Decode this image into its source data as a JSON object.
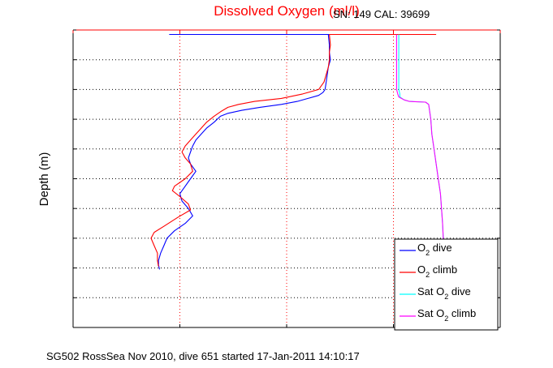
{
  "chart_data": {
    "type": "line",
    "title": "Dissolved Oxygen (ml/l)",
    "sn_label": "SN: 149  CAL: 39699",
    "ylabel": "Depth (m)",
    "caption": "SG502 RossSea Nov 2010, dive 651 started 17-Jan-2011 14:10:17",
    "xlim": [
      5,
      9
    ],
    "ylim": [
      0,
      200
    ],
    "y_reversed": true,
    "x_axis_position": "top",
    "xticks": [
      5,
      6,
      7,
      8,
      9
    ],
    "yticks": [
      0,
      20,
      40,
      60,
      80,
      100,
      120,
      140,
      160,
      180,
      200
    ],
    "grid": true,
    "legend_position": "bottom-right",
    "colors": {
      "o2_dive": "#0000ff",
      "o2_climb": "#ff0000",
      "sat_dive": "#00ffff",
      "sat_climb": "#ff00ff",
      "x_axis": "#ff0000",
      "title": "#ff0000"
    },
    "surface_line_x": [
      5.9,
      8.4
    ],
    "series": [
      {
        "key": "o2_dive",
        "name": "O2 dive",
        "legend_main": "O",
        "legend_sub": "2",
        "legend_rest": " dive",
        "x": [
          7.39,
          7.4,
          7.4,
          7.41,
          7.39,
          7.38,
          7.37,
          7.36,
          7.34,
          7.3,
          7.2,
          7.1,
          6.95,
          6.75,
          6.58,
          6.45,
          6.38,
          6.32,
          6.25,
          6.2,
          6.15,
          6.12,
          6.1,
          6.08,
          6.1,
          6.15,
          6.1,
          6.05,
          6.0,
          6.02,
          6.08,
          6.12,
          6.05,
          5.95,
          5.88,
          5.85,
          5.82,
          5.8,
          5.8,
          5.81
        ],
        "y": [
          3,
          10,
          15,
          20,
          25,
          30,
          35,
          40,
          42,
          44,
          46,
          48,
          50,
          52,
          54,
          56,
          58,
          62,
          66,
          70,
          74,
          78,
          82,
          86,
          90,
          95,
          100,
          105,
          110,
          115,
          120,
          125,
          130,
          135,
          140,
          145,
          150,
          155,
          158,
          161
        ]
      },
      {
        "key": "o2_climb",
        "name": "O2 climb",
        "legend_main": "O",
        "legend_sub": "2",
        "legend_rest": " climb",
        "x": [
          7.4,
          7.41,
          7.4,
          7.4,
          7.39,
          7.37,
          7.35,
          7.3,
          7.15,
          6.95,
          6.7,
          6.55,
          6.45,
          6.38,
          6.32,
          6.25,
          6.2,
          6.15,
          6.1,
          6.05,
          6.02,
          6.05,
          6.1,
          6.12,
          6.05,
          5.95,
          5.93,
          6.0,
          6.08,
          6.1,
          5.98,
          5.85,
          5.76,
          5.73,
          5.76,
          5.79,
          5.79,
          5.8
        ],
        "y": [
          3,
          10,
          15,
          20,
          25,
          30,
          35,
          40,
          43,
          46,
          48,
          50,
          52,
          55,
          58,
          62,
          66,
          70,
          74,
          78,
          82,
          86,
          90,
          95,
          100,
          105,
          108,
          112,
          117,
          121,
          126,
          132,
          136,
          140,
          145,
          150,
          155,
          159
        ]
      },
      {
        "key": "sat_dive",
        "name": "Sat O2 dive",
        "legend_main": "Sat O",
        "legend_sub": "2",
        "legend_rest": " dive",
        "x": [
          8.05,
          8.05,
          8.05,
          8.05,
          8.05,
          8.06,
          8.06,
          8.1,
          8.15,
          8.3,
          8.33,
          8.35,
          8.36,
          8.38,
          8.4,
          8.42,
          8.44,
          8.45,
          8.46,
          8.47
        ],
        "y": [
          3,
          10,
          20,
          30,
          40,
          43,
          45,
          47,
          48,
          48.5,
          50,
          60,
          70,
          80,
          90,
          100,
          110,
          120,
          130,
          145
        ]
      },
      {
        "key": "sat_climb",
        "name": "Sat O2 climb",
        "legend_main": "Sat O",
        "legend_sub": "2",
        "legend_rest": " climb",
        "x": [
          8.03,
          8.03,
          8.03,
          8.03,
          8.03,
          8.04,
          8.05,
          8.1,
          8.15,
          8.3,
          8.33,
          8.35,
          8.36,
          8.38,
          8.4,
          8.42,
          8.44,
          8.45,
          8.46,
          8.47
        ],
        "y": [
          3,
          10,
          20,
          30,
          40,
          43,
          45,
          47,
          48,
          48.5,
          50,
          60,
          70,
          80,
          90,
          100,
          110,
          120,
          130,
          145
        ]
      }
    ]
  }
}
